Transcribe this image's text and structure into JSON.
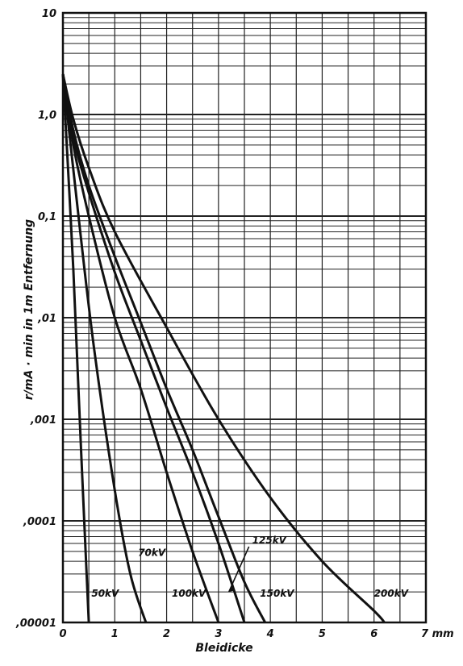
{
  "chart_data": {
    "type": "line",
    "title": "",
    "xlabel": "Bleidicke",
    "ylabel": "r/mA · min in 1m Entfernung",
    "x_unit": "mm",
    "xlim": [
      0,
      7
    ],
    "ylim": [
      1e-05,
      10
    ],
    "y_scale": "log",
    "grid": true,
    "x_ticks": [
      "0",
      "1",
      "2",
      "3",
      "4",
      "5",
      "6",
      "7 mm"
    ],
    "y_ticks": [
      "10",
      "1,0",
      "0,1",
      ",01",
      ",001",
      ",0001",
      ",00001"
    ],
    "series": [
      {
        "name": "50kV",
        "x": [
          0,
          0.2,
          0.35,
          0.5
        ],
        "y": [
          2.5,
          0.03,
          0.0005,
          1e-05
        ]
      },
      {
        "name": "70kV",
        "x": [
          0,
          0.3,
          0.6,
          1.0,
          1.3,
          1.6
        ],
        "y": [
          2.5,
          0.1,
          0.005,
          0.0002,
          3e-05,
          1e-05
        ]
      },
      {
        "name": "100kV",
        "x": [
          0,
          0.2,
          0.5,
          1.0,
          1.5,
          2.0,
          2.5,
          3.0
        ],
        "y": [
          2.5,
          0.5,
          0.1,
          0.01,
          0.002,
          0.0003,
          5e-05,
          1e-05
        ]
      },
      {
        "name": "125kV",
        "x": [
          0,
          0.2,
          0.5,
          1.0,
          1.5,
          2.0,
          2.5,
          3.0,
          3.5
        ],
        "y": [
          2.5,
          0.6,
          0.17,
          0.028,
          0.006,
          0.0013,
          0.0003,
          6e-05,
          1e-05
        ]
      },
      {
        "name": "150kV",
        "x": [
          0,
          0.2,
          0.5,
          1.0,
          1.5,
          2.0,
          2.5,
          3.0,
          3.5,
          3.9
        ],
        "y": [
          2.5,
          0.7,
          0.2,
          0.04,
          0.009,
          0.002,
          0.0005,
          0.00011,
          2.5e-05,
          1e-05
        ]
      },
      {
        "name": "200kV",
        "x": [
          0,
          0.2,
          0.5,
          1.0,
          2.0,
          3.0,
          4.0,
          5.0,
          6.0,
          6.2
        ],
        "y": [
          2.5,
          0.9,
          0.3,
          0.07,
          0.008,
          0.001,
          0.00017,
          4e-05,
          1.3e-05,
          1e-05
        ]
      }
    ],
    "curve_labels": [
      {
        "text": "50kV",
        "x": 0.55,
        "y": 1.8e-05
      },
      {
        "text": "70kV",
        "x": 1.45,
        "y": 4.5e-05
      },
      {
        "text": "100kV",
        "x": 2.1,
        "y": 1.8e-05
      },
      {
        "text": "125kV",
        "x": 3.65,
        "y": 6e-05
      },
      {
        "text": "150kV",
        "x": 3.8,
        "y": 1.8e-05
      },
      {
        "text": "200kV",
        "x": 6.0,
        "y": 1.8e-05
      }
    ]
  }
}
